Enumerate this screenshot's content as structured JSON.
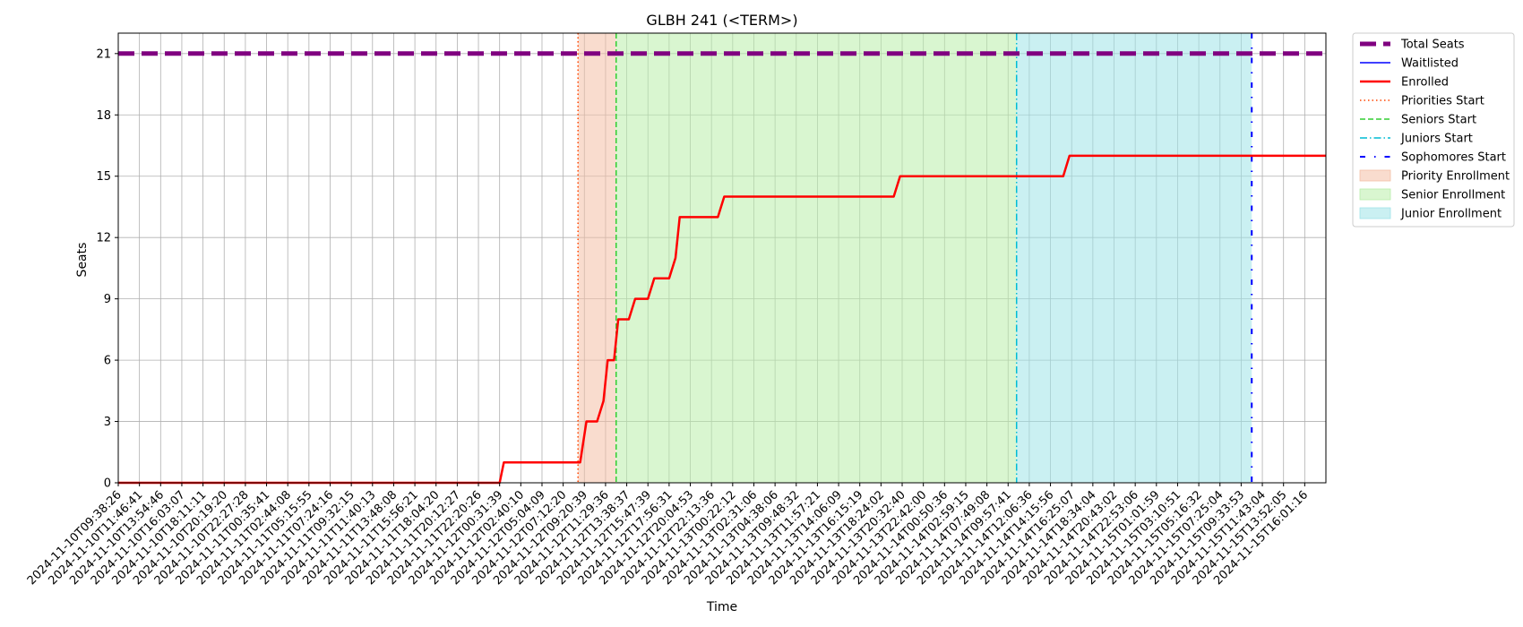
{
  "chart_data": {
    "type": "line",
    "title": "GLBH 241 (<TERM>)",
    "xlabel": "Time",
    "ylabel": "Seats",
    "ylim": [
      0,
      22
    ],
    "yticks": [
      0,
      3,
      6,
      9,
      12,
      15,
      18,
      21
    ],
    "grid": true,
    "legend_placement": "outside-top-right",
    "x_tick_labels": [
      "2024-11-10T09:38:26",
      "2024-11-10T11:46:41",
      "2024-11-10T13:54:46",
      "2024-11-10T16:03:07",
      "2024-11-10T18:11:11",
      "2024-11-10T20:19:20",
      "2024-11-10T22:27:28",
      "2024-11-11T00:35:41",
      "2024-11-11T02:44:08",
      "2024-11-11T05:15:55",
      "2024-11-11T07:24:16",
      "2024-11-11T09:32:15",
      "2024-11-11T11:40:13",
      "2024-11-11T13:48:08",
      "2024-11-11T15:56:21",
      "2024-11-11T18:04:20",
      "2024-11-11T20:12:27",
      "2024-11-11T22:20:26",
      "2024-11-12T00:31:39",
      "2024-11-12T02:40:10",
      "2024-11-12T05:04:09",
      "2024-11-12T07:12:20",
      "2024-11-12T09:20:39",
      "2024-11-12T11:29:36",
      "2024-11-12T13:38:37",
      "2024-11-12T15:47:39",
      "2024-11-12T17:56:31",
      "2024-11-12T20:04:53",
      "2024-11-12T22:13:36",
      "2024-11-13T00:22:12",
      "2024-11-13T02:31:06",
      "2024-11-13T04:38:06",
      "2024-11-13T09:48:32",
      "2024-11-13T11:57:21",
      "2024-11-13T14:06:09",
      "2024-11-13T16:15:19",
      "2024-11-13T18:24:02",
      "2024-11-13T20:32:40",
      "2024-11-13T22:42:00",
      "2024-11-14T00:50:36",
      "2024-11-14T02:59:15",
      "2024-11-14T07:49:08",
      "2024-11-14T09:57:41",
      "2024-11-14T12:06:36",
      "2024-11-14T14:15:56",
      "2024-11-14T16:25:07",
      "2024-11-14T18:34:04",
      "2024-11-14T20:43:02",
      "2024-11-14T22:53:06",
      "2024-11-15T01:01:59",
      "2024-11-15T03:10:51",
      "2024-11-15T05:16:32",
      "2024-11-15T07:25:04",
      "2024-11-15T09:33:53",
      "2024-11-15T11:43:04",
      "2024-11-15T13:52:05",
      "2024-11-15T16:01:16"
    ],
    "x_range": [
      0,
      57
    ],
    "series": [
      {
        "name": "Total Seats",
        "color": "#800080",
        "style": "dashed-thick",
        "points": [
          [
            0,
            21
          ],
          [
            57,
            21
          ]
        ]
      },
      {
        "name": "Waitlisted",
        "color": "#0000ff",
        "style": "solid-thin",
        "points": []
      },
      {
        "name": "Enrolled",
        "color": "#ff0000",
        "style": "solid-thick",
        "points": [
          [
            0,
            0
          ],
          [
            18,
            0
          ],
          [
            18.2,
            1
          ],
          [
            21.8,
            1
          ],
          [
            22.1,
            3
          ],
          [
            22.6,
            3
          ],
          [
            22.9,
            4
          ],
          [
            23.1,
            6
          ],
          [
            23.4,
            6
          ],
          [
            23.6,
            8
          ],
          [
            24.1,
            8
          ],
          [
            24.4,
            9
          ],
          [
            25,
            9
          ],
          [
            25.3,
            10
          ],
          [
            26,
            10
          ],
          [
            26.3,
            11
          ],
          [
            26.5,
            13
          ],
          [
            28.3,
            13
          ],
          [
            28.6,
            14
          ],
          [
            36.6,
            14
          ],
          [
            36.9,
            15
          ],
          [
            44.6,
            15
          ],
          [
            44.9,
            16
          ],
          [
            57,
            16
          ]
        ]
      }
    ],
    "vlines": [
      {
        "name": "Priorities Start",
        "x": 21.7,
        "color": "#ff4500",
        "style": "dotted"
      },
      {
        "name": "Seniors Start",
        "x": 23.5,
        "color": "#32cd32",
        "style": "dashed"
      },
      {
        "name": "Juniors Start",
        "x": 42.4,
        "color": "#00bcd4",
        "style": "dashdot"
      },
      {
        "name": "Sophomores Start",
        "x": 53.5,
        "color": "#0000ff",
        "style": "loosely-dashdot"
      }
    ],
    "spans": [
      {
        "name": "Priority Enrollment",
        "x0": 21.7,
        "x1": 23.5,
        "color": "#f4c0a6"
      },
      {
        "name": "Senior Enrollment",
        "x0": 23.5,
        "x1": 42.4,
        "color": "#b9eeaa"
      },
      {
        "name": "Junior Enrollment",
        "x0": 42.4,
        "x1": 53.5,
        "color": "#9fe3e8"
      }
    ],
    "legend": [
      {
        "label": "Total Seats",
        "kind": "line",
        "color": "#800080",
        "style": "dashed-thick"
      },
      {
        "label": "Waitlisted",
        "kind": "line",
        "color": "#0000ff",
        "style": "solid-thin"
      },
      {
        "label": "Enrolled",
        "kind": "line",
        "color": "#ff0000",
        "style": "solid-thick"
      },
      {
        "label": "Priorities Start",
        "kind": "line",
        "color": "#ff4500",
        "style": "dotted"
      },
      {
        "label": "Seniors Start",
        "kind": "line",
        "color": "#32cd32",
        "style": "dashed"
      },
      {
        "label": "Juniors Start",
        "kind": "line",
        "color": "#00bcd4",
        "style": "dashdot"
      },
      {
        "label": "Sophomores Start",
        "kind": "line",
        "color": "#0000ff",
        "style": "loosely-dashdot"
      },
      {
        "label": "Priority Enrollment",
        "kind": "patch",
        "color": "#f4c0a6"
      },
      {
        "label": "Senior Enrollment",
        "kind": "patch",
        "color": "#b9eeaa"
      },
      {
        "label": "Junior Enrollment",
        "kind": "patch",
        "color": "#9fe3e8"
      }
    ]
  }
}
